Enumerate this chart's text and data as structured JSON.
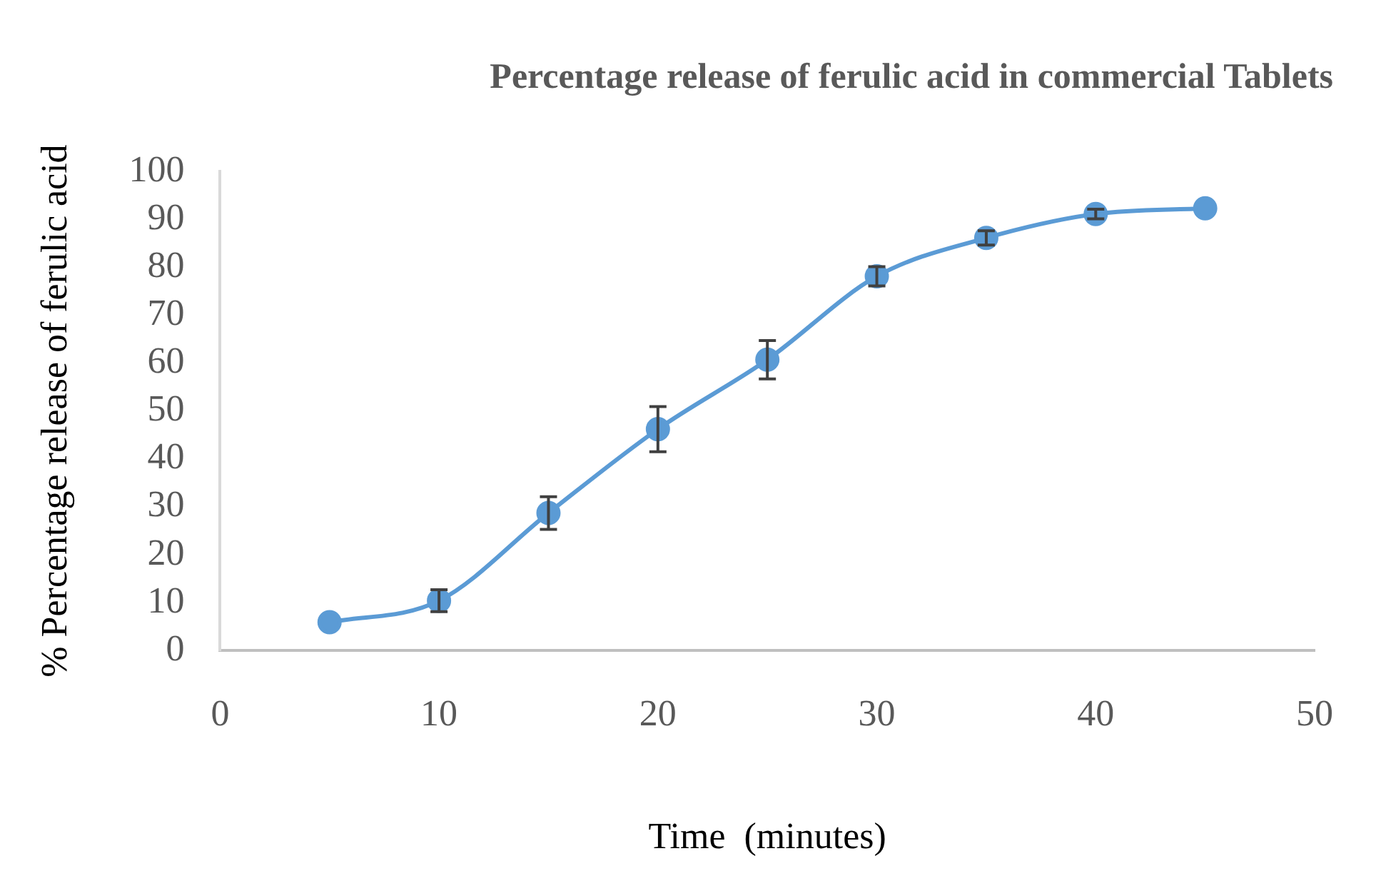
{
  "chart_data": {
    "type": "line",
    "title": "Percentage release of ferulic acid in commercial Tablets",
    "xlabel": "Time  (minutes)",
    "ylabel": "% Percentage release of ferulic acid",
    "x": [
      5,
      10,
      15,
      20,
      25,
      30,
      35,
      40,
      45
    ],
    "series": [
      {
        "color": "#5b9bd5",
        "values": [
          5.9,
          10.4,
          28.7,
          46.2,
          60.7,
          78.1,
          86.1,
          91.1,
          92.3
        ],
        "errors": [
          null,
          2.3,
          3.4,
          4.7,
          4,
          2,
          1.5,
          1,
          null
        ]
      }
    ],
    "xlim": [
      0,
      50
    ],
    "xticks": [
      0,
      10,
      20,
      30,
      40,
      50
    ],
    "ylim": [
      0,
      100
    ],
    "yticks": [
      0,
      10,
      20,
      30,
      40,
      50,
      60,
      70,
      80,
      90,
      100
    ],
    "grid": false,
    "legend": false,
    "marker": "circle",
    "line_style": "solid"
  }
}
